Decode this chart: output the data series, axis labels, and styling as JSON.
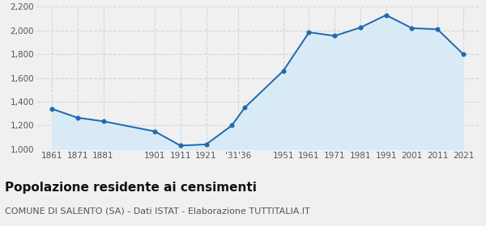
{
  "years": [
    1861,
    1871,
    1881,
    1901,
    1911,
    1921,
    1931,
    1936,
    1951,
    1961,
    1971,
    1981,
    1991,
    2001,
    2011,
    2021
  ],
  "population": [
    1340,
    1265,
    1235,
    1150,
    1030,
    1040,
    1200,
    1350,
    1660,
    1985,
    1955,
    2025,
    2130,
    2020,
    2010,
    1800
  ],
  "ylim": [
    1000,
    2200
  ],
  "yticks": [
    1000,
    1200,
    1400,
    1600,
    1800,
    2000,
    2200
  ],
  "xlim_left": 1855,
  "xlim_right": 2027,
  "line_color": "#1c6ab0",
  "fill_color": "#d9eaf7",
  "marker_color": "#1c6ab0",
  "bg_color": "#f0f0f0",
  "grid_color": "#c8d8e8",
  "xtick_positions": [
    1861,
    1871,
    1881,
    1901,
    1911,
    1921,
    1933.5,
    1951,
    1961,
    1971,
    1981,
    1991,
    2001,
    2011,
    2021
  ],
  "xtick_labels": [
    "1861",
    "1871",
    "1881",
    "1901",
    "1911",
    "1921",
    "'31'36",
    "1951",
    "1961",
    "1971",
    "1981",
    "1991",
    "2001",
    "2011",
    "2021"
  ],
  "title": "Popolazione residente ai censimenti",
  "subtitle": "COMUNE DI SALENTO (SA) - Dati ISTAT - Elaborazione TUTTITALIA.IT",
  "title_fontsize": 11,
  "subtitle_fontsize": 8
}
